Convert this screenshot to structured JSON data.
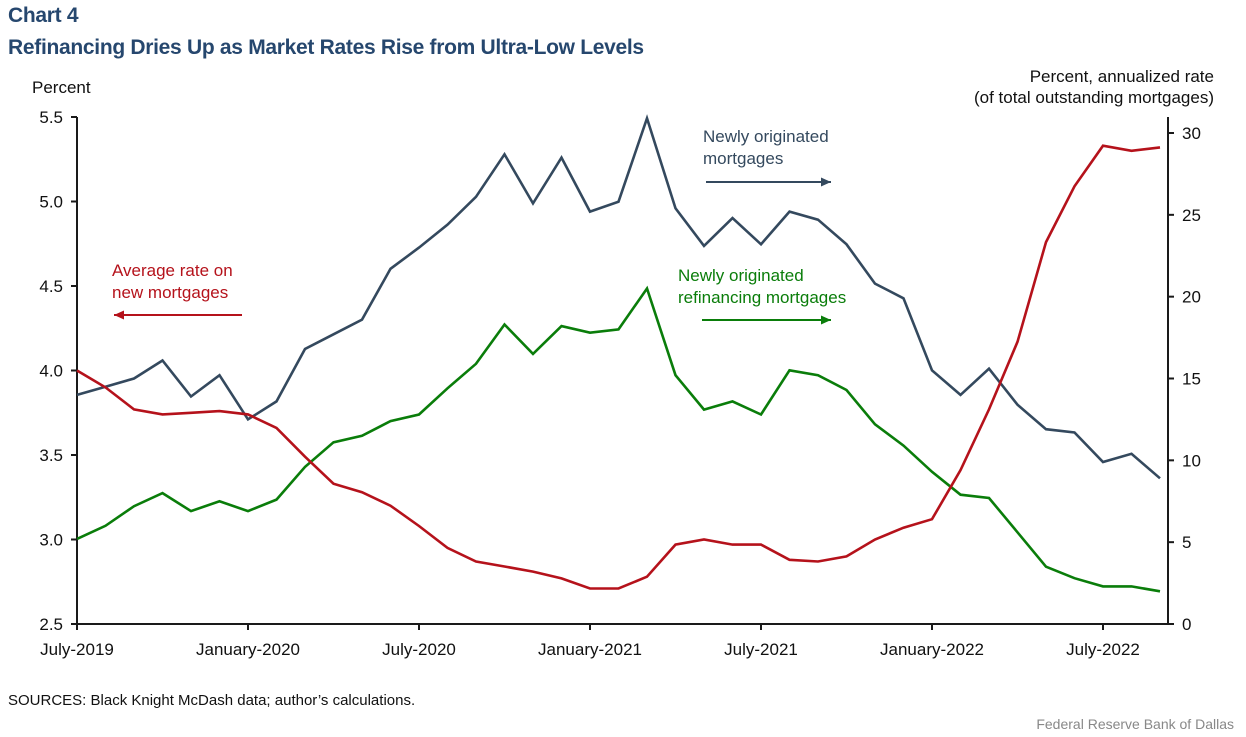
{
  "chart_number": "Chart 4",
  "title": "Refinancing Dries Up as Market Rates Rise from Ultra-Low Levels",
  "left_axis_unit": "Percent",
  "right_axis_unit_line1": "Percent, annualized rate",
  "right_axis_unit_line2": "(of total outstanding mortgages)",
  "source": "SOURCES: Black Knight McDash data; author’s calculations.",
  "credit": "Federal Reserve Bank of Dallas",
  "colors": {
    "red": "#b5121b",
    "navy": "#34495e",
    "green": "#0a7d0a",
    "axis": "#1a1a1a",
    "title": "#26476e"
  },
  "annotations": [
    {
      "line1": "Average rate on",
      "line2": "new mortgages",
      "series": "rate",
      "arrow": "left"
    },
    {
      "line1": "Newly originated",
      "line2": "mortgages",
      "series": "orig",
      "arrow": "right"
    },
    {
      "line1": "Newly originated",
      "line2": "refinancing mortgages",
      "series": "refi",
      "arrow": "right"
    }
  ],
  "chart_data": {
    "type": "line",
    "title": "Refinancing Dries Up as Market Rates Rise from Ultra-Low Levels",
    "xlabel": "",
    "x_start": "July-2019",
    "x_frequency": "monthly",
    "x_tick_labels": [
      "July-2019",
      "January-2020",
      "July-2020",
      "January-2021",
      "July-2021",
      "January-2022",
      "July-2022"
    ],
    "x_tick_indices": [
      0,
      6,
      12,
      18,
      24,
      30,
      36
    ],
    "n_points": 39,
    "left_axis": {
      "label": "Percent",
      "ylim": [
        2.5,
        5.5
      ],
      "ticks": [
        "2.5",
        "3.0",
        "3.5",
        "4.0",
        "4.5",
        "5.0",
        "5.5"
      ],
      "tick_values": [
        2.5,
        3.0,
        3.5,
        4.0,
        4.5,
        5.0,
        5.5
      ]
    },
    "right_axis": {
      "label": "Percent, annualized rate (of total outstanding mortgages)",
      "ylim": [
        0,
        31
      ],
      "ticks": [
        "0",
        "5",
        "10",
        "15",
        "20",
        "25",
        "30"
      ],
      "tick_values": [
        0,
        5,
        10,
        15,
        20,
        25,
        30
      ]
    },
    "grid": false,
    "series": [
      {
        "name": "Average rate on new mortgages",
        "axis": "left",
        "color_key": "red",
        "values": [
          4.0,
          3.9,
          3.77,
          3.74,
          3.75,
          3.76,
          3.74,
          3.66,
          3.49,
          3.33,
          3.28,
          3.2,
          3.08,
          2.95,
          2.87,
          2.84,
          2.81,
          2.77,
          2.71,
          2.71,
          2.78,
          2.97,
          3.0,
          2.97,
          2.97,
          2.88,
          2.87,
          2.9,
          3.0,
          3.07,
          3.12,
          3.41,
          3.77,
          4.17,
          4.76,
          5.09,
          5.33,
          5.3,
          5.32
        ]
      },
      {
        "name": "Newly originated mortgages",
        "axis": "right",
        "color_key": "navy",
        "values": [
          14.0,
          14.5,
          15.0,
          16.1,
          13.9,
          15.2,
          12.5,
          13.6,
          16.8,
          17.7,
          18.6,
          21.7,
          23.0,
          24.4,
          26.1,
          28.7,
          25.7,
          28.5,
          25.2,
          25.8,
          30.9,
          25.4,
          23.1,
          24.8,
          23.2,
          25.2,
          24.7,
          23.2,
          20.8,
          19.9,
          15.5,
          14.0,
          15.6,
          13.4,
          11.9,
          11.7,
          9.9,
          10.4,
          8.9
        ]
      },
      {
        "name": "Newly originated refinancing mortgages",
        "axis": "right",
        "color_key": "green",
        "values": [
          5.2,
          6.0,
          7.2,
          8.0,
          6.9,
          7.5,
          6.9,
          7.6,
          9.6,
          11.1,
          11.5,
          12.4,
          12.8,
          14.4,
          15.9,
          18.3,
          16.5,
          18.2,
          17.8,
          18.0,
          20.5,
          15.2,
          13.1,
          13.6,
          12.8,
          15.5,
          15.2,
          14.3,
          12.2,
          10.9,
          9.3,
          7.9,
          7.7,
          5.6,
          3.5,
          2.8,
          2.3,
          2.3,
          2.0
        ]
      }
    ]
  }
}
